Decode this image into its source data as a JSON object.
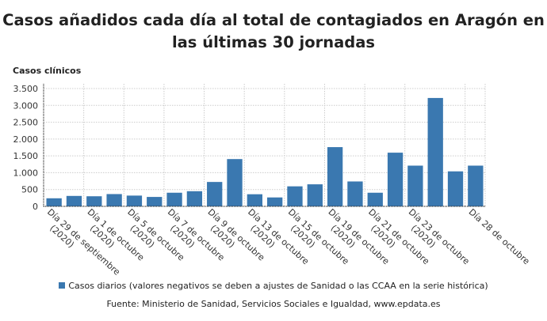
{
  "chart_data": {
    "type": "bar",
    "title": "Casos añadidos cada día al total de contagiados en Aragón en las últimas 30 jornadas",
    "title_lines": [
      "Casos añadidos cada día al total de contagiados en Aragón en",
      "las últimas 30 jornadas"
    ],
    "ylabel": "Casos clínicos",
    "xlabel": "",
    "ylim": [
      0,
      3500
    ],
    "yticks": [
      0,
      500,
      1000,
      1500,
      2000,
      2500,
      3000,
      3500
    ],
    "ytick_labels": [
      "0",
      "500",
      "1.000",
      "1.500",
      "2.000",
      "2.500",
      "3.000",
      "3.500"
    ],
    "grid": true,
    "legend_position": "bottom",
    "bar_color": "#3a78b0",
    "categories": [
      [
        "Día 29 de septiembre",
        "(2020)"
      ],
      [
        "",
        ""
      ],
      [
        "Día 1 de octubre",
        "(2020)"
      ],
      [
        "",
        ""
      ],
      [
        "Día 5 de octubre",
        "(2020)"
      ],
      [
        "",
        ""
      ],
      [
        "Día 7 de octubre",
        "(2020)"
      ],
      [
        "",
        ""
      ],
      [
        "Día 9 de octubre",
        "(2020)"
      ],
      [
        "",
        ""
      ],
      [
        "Día 13 de octubre",
        "(2020)"
      ],
      [
        "",
        ""
      ],
      [
        "Día 15 de octubre",
        "(2020)"
      ],
      [
        "",
        ""
      ],
      [
        "Día 19 de octubre",
        "(2020)"
      ],
      [
        "",
        ""
      ],
      [
        "Día 21 de octubre",
        "(2020)"
      ],
      [
        "",
        ""
      ],
      [
        "Día 23 de octubre",
        "(2020)"
      ],
      [
        "",
        ""
      ],
      [
        "",
        ""
      ],
      [
        "Día 28 de octubre",
        ""
      ]
    ],
    "series": [
      {
        "name": "Casos diarios (valores negativos se deben a ajustes de Sanidad o las CCAA en la serie histórica)",
        "values": [
          240,
          310,
          300,
          365,
          320,
          280,
          405,
          450,
          725,
          1405,
          360,
          265,
          595,
          655,
          1760,
          740,
          405,
          1595,
          1210,
          3220,
          1040,
          1210
        ]
      }
    ]
  },
  "source": "Fuente: Ministerio de Sanidad, Servicios Sociales e Igualdad, www.epdata.es"
}
